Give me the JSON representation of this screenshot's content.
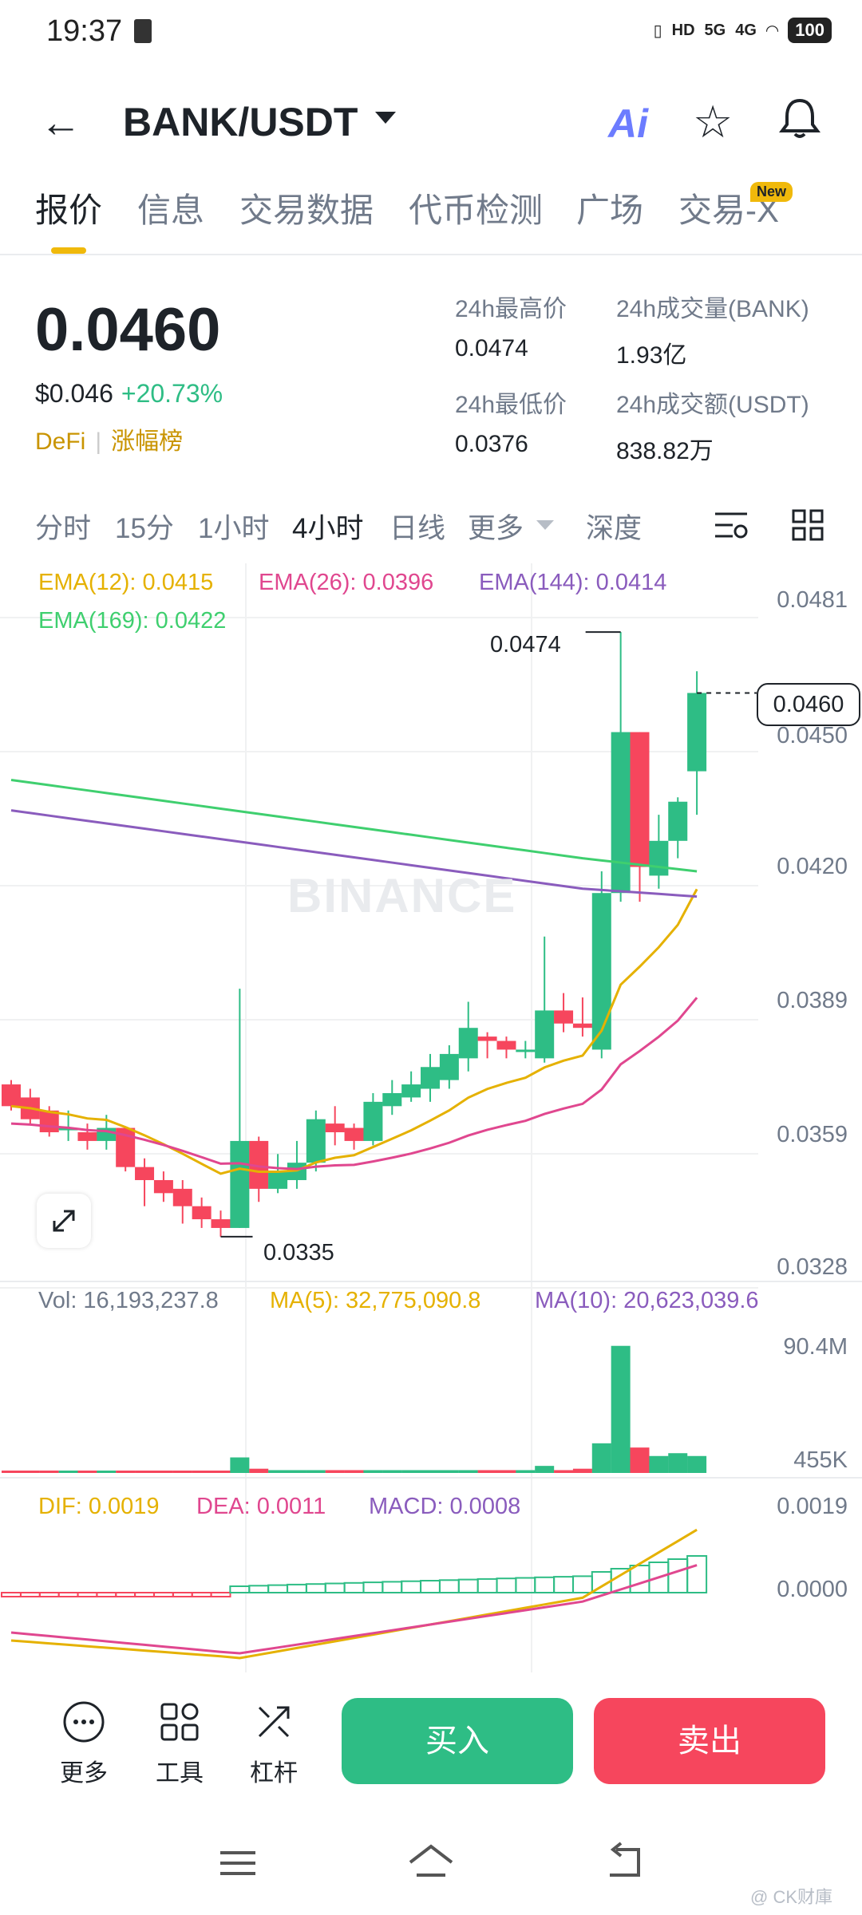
{
  "status": {
    "time": "19:37",
    "network1": "5G",
    "network2": "4G",
    "hd": "HD",
    "battery": "100"
  },
  "header": {
    "pair": "BANK/USDT",
    "ai_label": "Ai"
  },
  "tabs": [
    {
      "label": "报价"
    },
    {
      "label": "信息"
    },
    {
      "label": "交易数据"
    },
    {
      "label": "代币检测"
    },
    {
      "label": "广场"
    },
    {
      "label": "交易-X"
    }
  ],
  "new_badge": "New",
  "price": {
    "last": "0.0460",
    "usd": "$0.046",
    "change": "+20.73%",
    "tag1": "DeFi",
    "tag2": "涨幅榜"
  },
  "stats": {
    "high_label": "24h最高价",
    "high": "0.0474",
    "vol_label": "24h成交量(BANK)",
    "vol": "1.93亿",
    "low_label": "24h最低价",
    "low": "0.0376",
    "amount_label": "24h成交额(USDT)",
    "amount": "838.82万"
  },
  "intervals": [
    {
      "label": "分时"
    },
    {
      "label": "15分"
    },
    {
      "label": "1小时"
    },
    {
      "label": "4小时"
    },
    {
      "label": "日线"
    },
    {
      "label": "更多"
    },
    {
      "label": "深度"
    }
  ],
  "legend": {
    "ema12": "EMA(12): 0.0415",
    "ema26": "EMA(26): 0.0396",
    "ema144": "EMA(144): 0.0414",
    "ema169": "EMA(169): 0.0422"
  },
  "watermark": "BINANCE",
  "price_axis": [
    "0.0481",
    "0.0450",
    "0.0420",
    "0.0389",
    "0.0359",
    "0.0328"
  ],
  "current_price_tag": "0.0460",
  "high_marker": "0.0474",
  "low_marker": "0.0335",
  "volume": {
    "vol": "Vol: 16,193,237.8",
    "ma5": "MA(5): 32,775,090.8",
    "ma10": "MA(10): 20,623,039.6",
    "axis_top": "90.4M",
    "axis_bottom": "455K"
  },
  "macd": {
    "dif": "DIF: 0.0019",
    "dea": "DEA: 0.0011",
    "macd": "MACD: 0.0008",
    "axis_top": "0.0019",
    "axis_mid": "0.0000"
  },
  "bottom": {
    "more": "更多",
    "tools": "工具",
    "leverage": "杠杆",
    "buy": "买入",
    "sell": "卖出"
  },
  "credit": "@ CK财庫",
  "colors": {
    "up": "#2ebd85",
    "down": "#f6465d",
    "accent": "#f0b90b"
  },
  "chart_data": {
    "type": "candlestick",
    "ylim": [
      0.0328,
      0.0481
    ],
    "candles": [
      {
        "o": 0.037,
        "h": 0.0371,
        "l": 0.0364,
        "c": 0.0365
      },
      {
        "o": 0.0367,
        "h": 0.0369,
        "l": 0.0361,
        "c": 0.0362
      },
      {
        "o": 0.0364,
        "h": 0.0365,
        "l": 0.0358,
        "c": 0.0359
      },
      {
        "o": 0.036,
        "h": 0.0364,
        "l": 0.0357,
        "c": 0.036
      },
      {
        "o": 0.0359,
        "h": 0.0361,
        "l": 0.0355,
        "c": 0.0357
      },
      {
        "o": 0.0357,
        "h": 0.0363,
        "l": 0.0355,
        "c": 0.036
      },
      {
        "o": 0.036,
        "h": 0.036,
        "l": 0.035,
        "c": 0.0351
      },
      {
        "o": 0.0351,
        "h": 0.0353,
        "l": 0.0342,
        "c": 0.0348
      },
      {
        "o": 0.0348,
        "h": 0.035,
        "l": 0.0343,
        "c": 0.0345
      },
      {
        "o": 0.0346,
        "h": 0.0348,
        "l": 0.0338,
        "c": 0.0342
      },
      {
        "o": 0.0342,
        "h": 0.0344,
        "l": 0.0337,
        "c": 0.0339
      },
      {
        "o": 0.0339,
        "h": 0.0341,
        "l": 0.0335,
        "c": 0.0337
      },
      {
        "o": 0.0337,
        "h": 0.0392,
        "l": 0.0337,
        "c": 0.0357
      },
      {
        "o": 0.0357,
        "h": 0.0358,
        "l": 0.0343,
        "c": 0.0346
      },
      {
        "o": 0.0346,
        "h": 0.0354,
        "l": 0.0345,
        "c": 0.035
      },
      {
        "o": 0.0348,
        "h": 0.0357,
        "l": 0.0346,
        "c": 0.0352
      },
      {
        "o": 0.0352,
        "h": 0.0364,
        "l": 0.035,
        "c": 0.0362
      },
      {
        "o": 0.0361,
        "h": 0.0365,
        "l": 0.0356,
        "c": 0.0359
      },
      {
        "o": 0.036,
        "h": 0.0361,
        "l": 0.0355,
        "c": 0.0357
      },
      {
        "o": 0.0357,
        "h": 0.0368,
        "l": 0.0356,
        "c": 0.0366
      },
      {
        "o": 0.0365,
        "h": 0.0371,
        "l": 0.0363,
        "c": 0.0368
      },
      {
        "o": 0.0367,
        "h": 0.0373,
        "l": 0.0366,
        "c": 0.037
      },
      {
        "o": 0.0369,
        "h": 0.0377,
        "l": 0.0366,
        "c": 0.0374
      },
      {
        "o": 0.0371,
        "h": 0.0379,
        "l": 0.0369,
        "c": 0.0377
      },
      {
        "o": 0.0376,
        "h": 0.0389,
        "l": 0.0373,
        "c": 0.0383
      },
      {
        "o": 0.0381,
        "h": 0.0382,
        "l": 0.0376,
        "c": 0.038
      },
      {
        "o": 0.038,
        "h": 0.0381,
        "l": 0.0376,
        "c": 0.0378
      },
      {
        "o": 0.0378,
        "h": 0.038,
        "l": 0.0376,
        "c": 0.0378
      },
      {
        "o": 0.0376,
        "h": 0.0404,
        "l": 0.0375,
        "c": 0.0387
      },
      {
        "o": 0.0387,
        "h": 0.0391,
        "l": 0.0382,
        "c": 0.0384
      },
      {
        "o": 0.0384,
        "h": 0.039,
        "l": 0.0381,
        "c": 0.0383
      },
      {
        "o": 0.0378,
        "h": 0.0419,
        "l": 0.0376,
        "c": 0.0414
      },
      {
        "o": 0.0414,
        "h": 0.0474,
        "l": 0.0412,
        "c": 0.0451
      },
      {
        "o": 0.0451,
        "h": 0.0451,
        "l": 0.0412,
        "c": 0.042
      },
      {
        "o": 0.0418,
        "h": 0.0432,
        "l": 0.0415,
        "c": 0.0426
      },
      {
        "o": 0.0426,
        "h": 0.0436,
        "l": 0.0422,
        "c": 0.0435
      },
      {
        "o": 0.0442,
        "h": 0.0465,
        "l": 0.0432,
        "c": 0.046
      }
    ],
    "volume_max": 90.4,
    "volumes": [
      1,
      1,
      1,
      1,
      1,
      1,
      1,
      1,
      1,
      1,
      1,
      1,
      11,
      3,
      2,
      2,
      2,
      2,
      2,
      2,
      2,
      2,
      2,
      2,
      2,
      2,
      2,
      2,
      5,
      2,
      3,
      21,
      90,
      18,
      12,
      14,
      12
    ]
  }
}
